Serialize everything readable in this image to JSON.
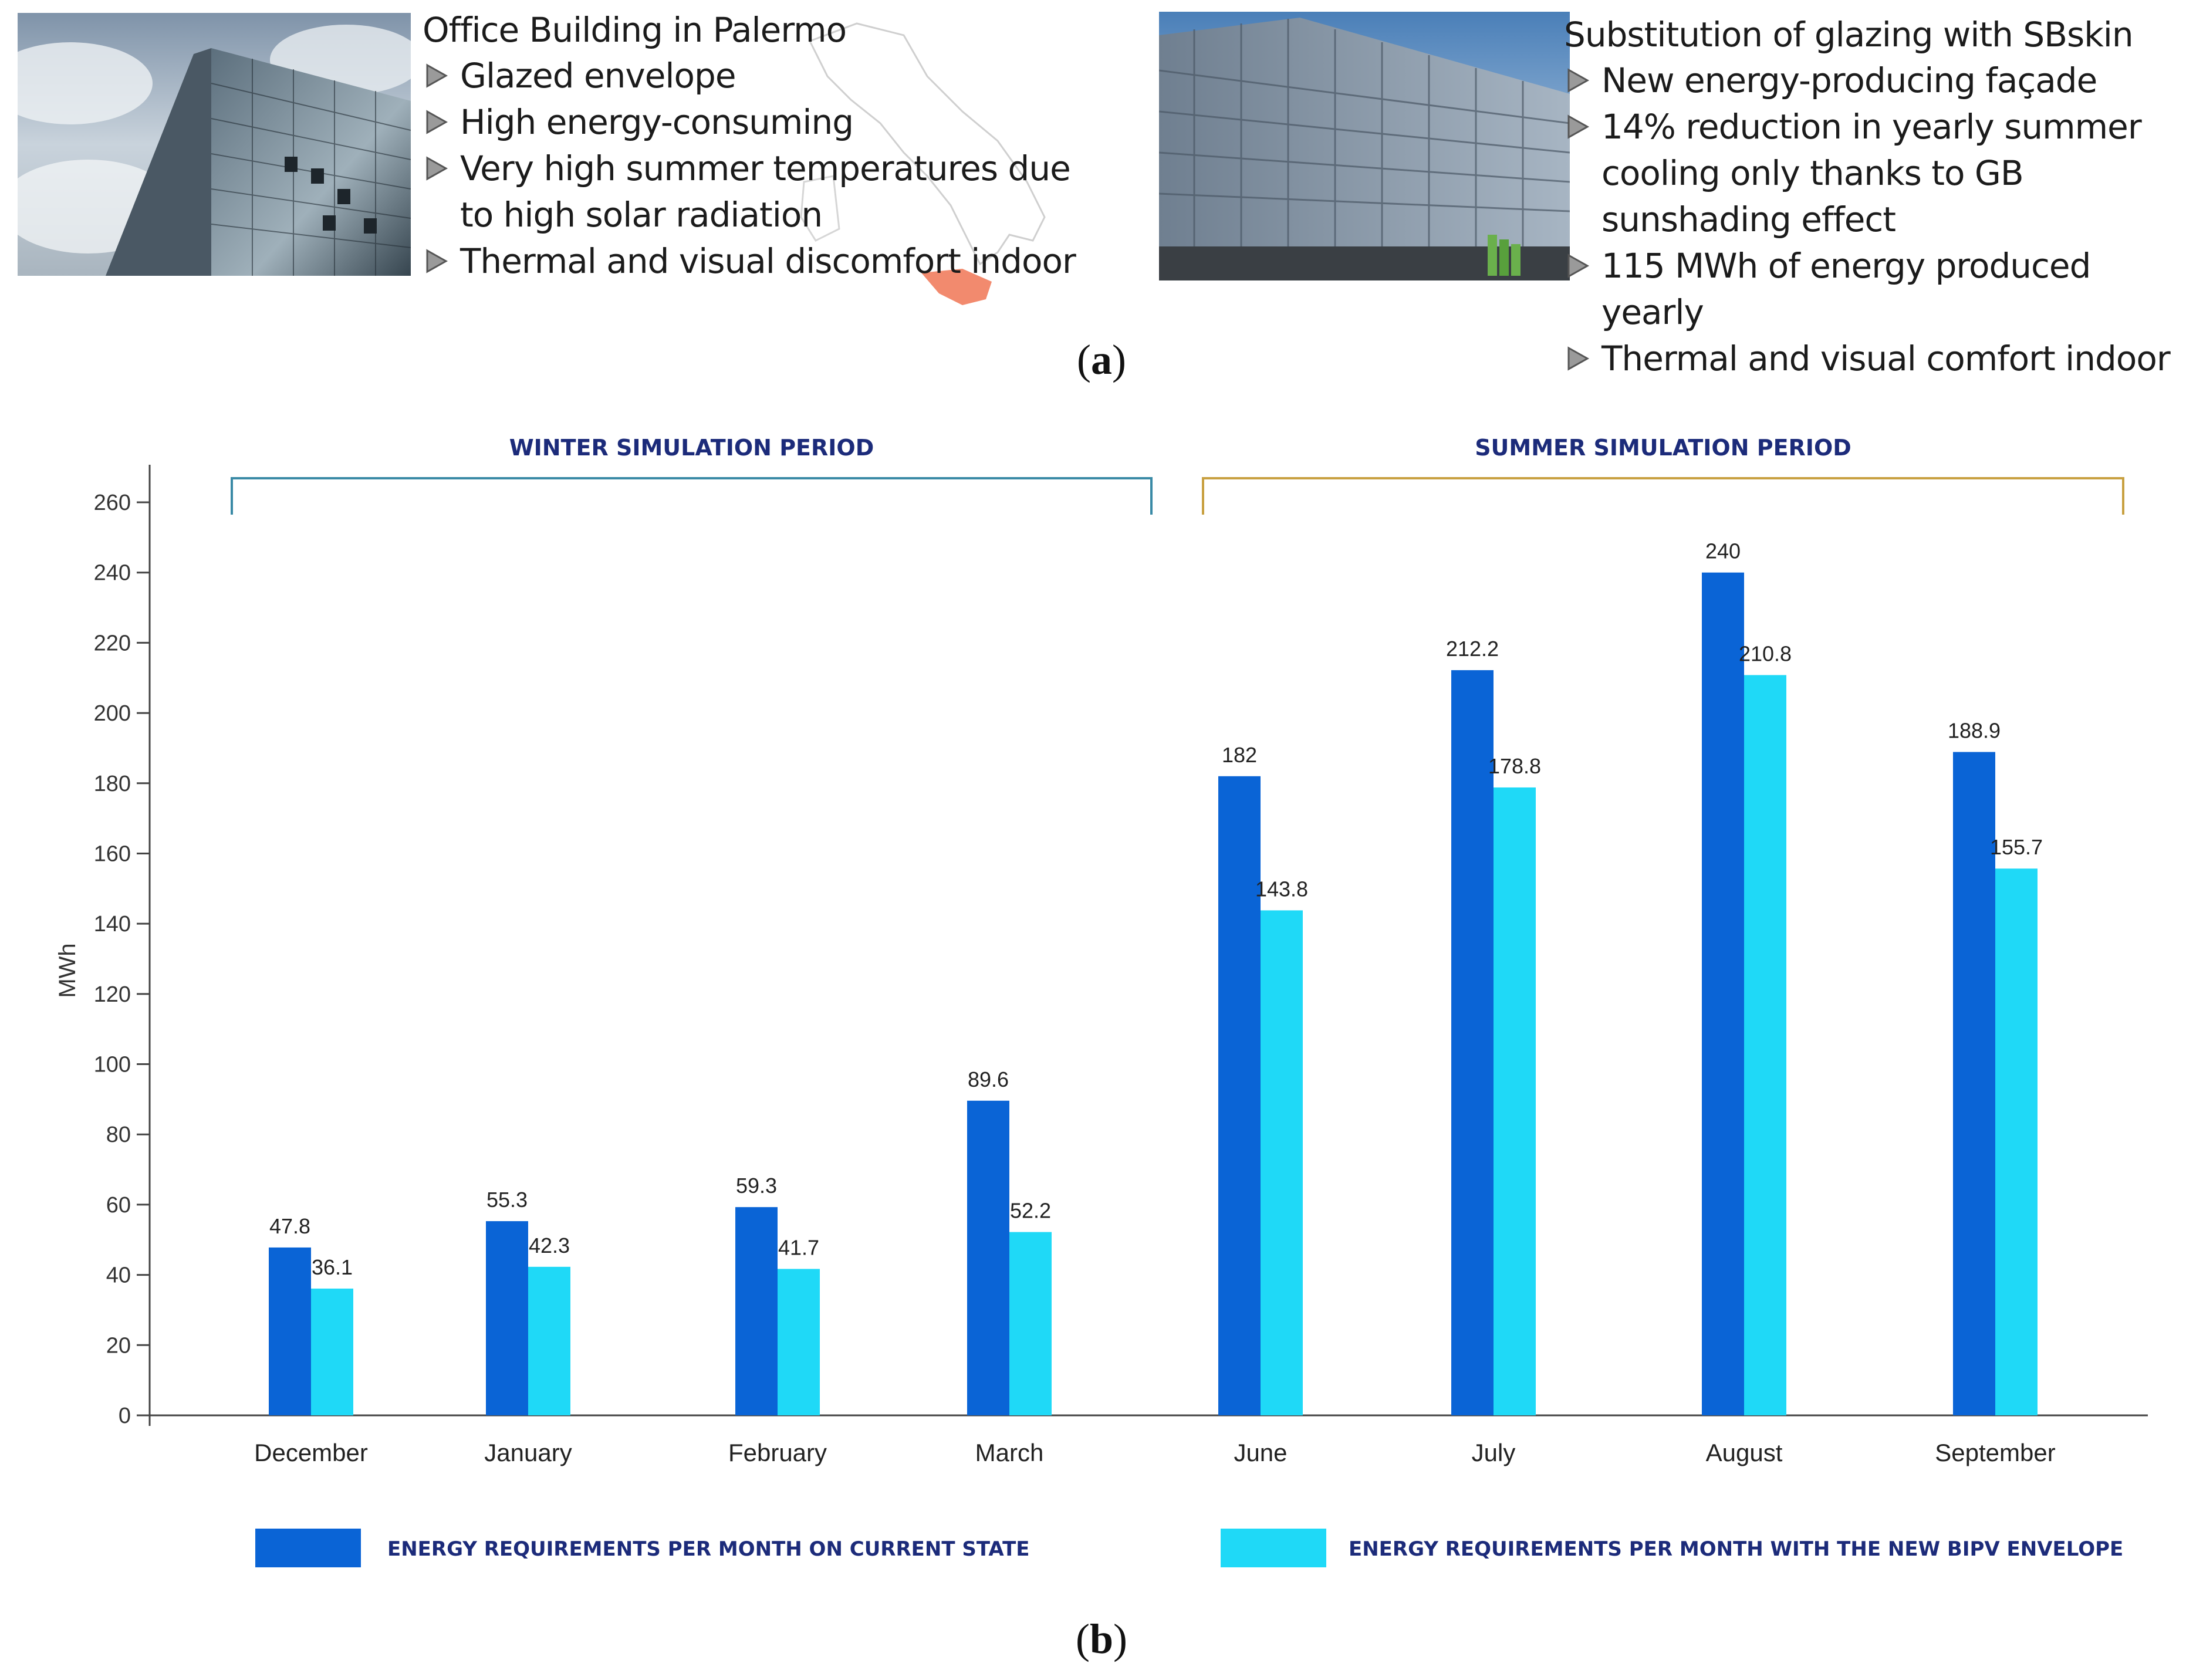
{
  "panel_a": {
    "caption": "a",
    "before": {
      "title": "Office Building in Palermo",
      "bullets": [
        "Glazed envelope",
        "High energy-consuming",
        "Very high summer temperatures due to high solar radiation",
        "Thermal and visual discomfort indoor"
      ]
    },
    "after": {
      "title": "Substitution of glazing with SBskin",
      "bullets": [
        "New energy-producing façade",
        "14% reduction in yearly summer cooling only thanks to GB sunshading effect",
        "115 MWh of energy produced yearly",
        "Thermal and visual comfort indoor"
      ]
    }
  },
  "panel_b": {
    "caption": "b"
  },
  "colors": {
    "current": "#0a64d6",
    "bipv": "#1fd9f7",
    "winter_bracket": "#3a8aa6",
    "summer_bracket": "#c8a040",
    "label_navy": "#1c2b7a"
  },
  "chart_data": {
    "type": "bar",
    "categories": [
      "December",
      "January",
      "February",
      "March",
      "June",
      "July",
      "August",
      "September"
    ],
    "series": [
      {
        "name": "ENERGY REQUIREMENTS PER MONTH ON CURRENT STATE",
        "values": [
          47.8,
          55.3,
          59.3,
          89.6,
          182,
          212.2,
          240,
          188.9
        ]
      },
      {
        "name": "ENERGY REQUIREMENTS PER MONTH WITH THE NEW BIPV ENVELOPE",
        "values": [
          36.1,
          42.3,
          41.7,
          52.2,
          143.8,
          178.8,
          210.8,
          155.7
        ]
      }
    ],
    "ylabel": "MWh",
    "ylim": [
      0,
      260
    ],
    "yticks": [
      0,
      20,
      40,
      60,
      80,
      100,
      120,
      140,
      160,
      180,
      200,
      220,
      240,
      260
    ],
    "grid": false,
    "periods": [
      {
        "label": "WINTER SIMULATION PERIOD",
        "categories": [
          "December",
          "January",
          "February",
          "March"
        ]
      },
      {
        "label": "SUMMER SIMULATION PERIOD",
        "categories": [
          "June",
          "July",
          "August",
          "September"
        ]
      }
    ],
    "legend_position": "bottom"
  }
}
